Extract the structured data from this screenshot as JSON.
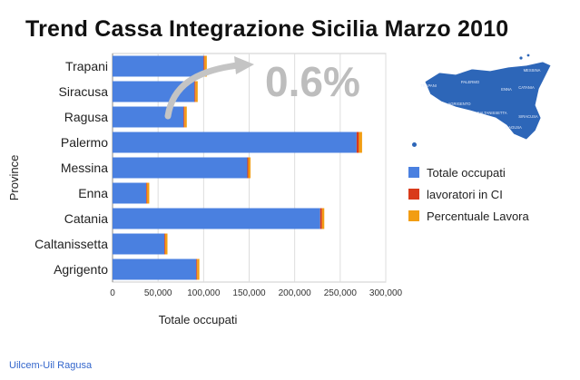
{
  "title": "Trend Cassa Integrazione Sicilia Marzo 2010",
  "footer": "Uilcem-Uil Ragusa",
  "annotation": "0.6%",
  "chart_data": {
    "type": "bar",
    "orientation": "horizontal",
    "stacked": true,
    "title": "Trend Cassa Integrazione Sicilia Marzo 2010",
    "xlabel": "Totale occupati",
    "ylabel": "Province",
    "xlim": [
      0,
      300000
    ],
    "xticks": [
      0,
      50000,
      100000,
      150000,
      200000,
      250000,
      300000
    ],
    "xtick_labels": [
      "0",
      "50,000",
      "100,000",
      "150,000",
      "200,000",
      "250,000",
      "300,000"
    ],
    "categories": [
      "Trapani",
      "Siracusa",
      "Ragusa",
      "Palermo",
      "Messina",
      "Enna",
      "Catania",
      "Caltanissetta",
      "Agrigento"
    ],
    "series": [
      {
        "name": "Totale occupati",
        "color": "#4a80e0",
        "values": [
          100000,
          90000,
          78000,
          268000,
          148000,
          37000,
          228000,
          57000,
          92000
        ]
      },
      {
        "name": "lavoratori in CI",
        "color": "#d93a1a",
        "values": [
          1000,
          1000,
          1000,
          2500,
          1000,
          800,
          2000,
          800,
          800
        ]
      },
      {
        "name": "Percentuale Lavora",
        "color": "#f29d12",
        "values": [
          2500,
          2500,
          2500,
          3500,
          2500,
          2500,
          2500,
          2500,
          2500
        ]
      }
    ],
    "grid": true,
    "legend_position": "right"
  },
  "map": {
    "color": "#2d66b8",
    "labels": [
      "MESSINA",
      "PALERMO",
      "TRAPANI",
      "ENNA",
      "CATANIA",
      "AGRIGENTO",
      "CALTANISSETTA",
      "SIRACUSA",
      "RAGUSA"
    ]
  }
}
